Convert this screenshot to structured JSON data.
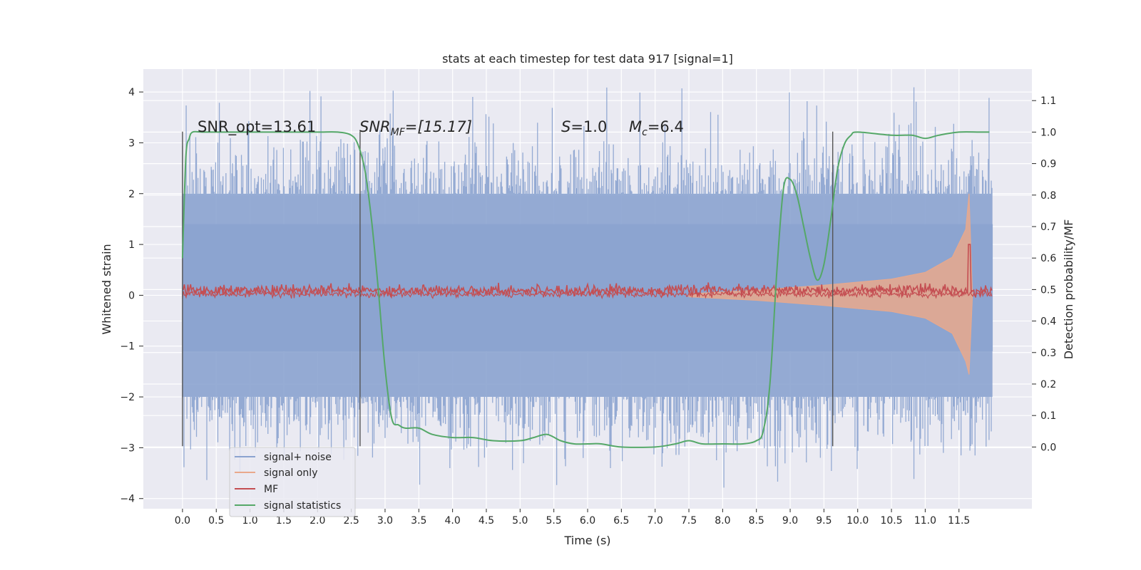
{
  "chart_data": {
    "type": "line",
    "title": "stats at each timestep for test data 917 [signal=1]",
    "xlabel": "Time (s)",
    "ylabel_left": "Whitened strain",
    "ylabel_right": "Detection probability/MF",
    "xlim": [
      -0.58,
      12.58
    ],
    "ylim_left": [
      -4.2,
      4.45
    ],
    "ylim_right": [
      -0.196,
      1.2
    ],
    "xticks": [
      0.0,
      0.5,
      1.0,
      1.5,
      2.0,
      2.5,
      3.0,
      3.5,
      4.0,
      4.5,
      5.0,
      5.5,
      6.0,
      6.5,
      7.0,
      7.5,
      8.0,
      8.5,
      9.0,
      9.5,
      10.0,
      10.5,
      11.0,
      11.5
    ],
    "xtick_labels": [
      "0.0",
      "0.5",
      "1.0",
      "1.5",
      "2.0",
      "2.5",
      "3.0",
      "3.5",
      "4.0",
      "4.5",
      "5.0",
      "5.5",
      "6.0",
      "6.5",
      "7.0",
      "7.5",
      "8.0",
      "8.5",
      "9.0",
      "9.5",
      "10.0",
      "10.5",
      "11.0",
      "11.5"
    ],
    "yticks_left": [
      4,
      3,
      2,
      1,
      0,
      -1,
      -2,
      -3,
      -4
    ],
    "ytick_labels_left": [
      "4",
      "3",
      "2",
      "1",
      "0",
      "−1",
      "−2",
      "−3",
      "−4"
    ],
    "yticks_right": [
      1.1,
      1.0,
      0.9,
      0.8,
      0.7,
      0.6,
      0.5,
      0.4,
      0.3,
      0.2,
      0.1,
      0.0
    ],
    "ytick_labels_right": [
      "1.1",
      "1.0",
      "0.9",
      "0.8",
      "0.7",
      "0.6",
      "0.5",
      "0.4",
      "0.3",
      "0.2",
      "0.1",
      "0.0"
    ],
    "grid": true,
    "legend_position": "lower-left",
    "legend": [
      {
        "name": "signal+ noise",
        "color": "#8ba3cf"
      },
      {
        "name": "signal only",
        "color": "#e9a98c"
      },
      {
        "name": "MF",
        "color": "#c44e52"
      },
      {
        "name": "signal statistics",
        "color": "#55a868"
      }
    ],
    "annotations": {
      "snr_opt": "SNR_opt=13.61",
      "snr_mf_main": "SNR",
      "snr_mf_sub": "MF",
      "snr_mf_rest": "=[15.17]",
      "s_main": "S",
      "s_rest": "=1.0",
      "mc_main": "M",
      "mc_sub": "c",
      "mc_rest": "=6.4"
    },
    "vertical_markers_x": [
      0.0,
      2.63,
      9.63
    ],
    "noise_band": {
      "t_start": 0.0,
      "t_end": 12.0,
      "typical_min": -2.0,
      "typical_max": 2.0,
      "peak_max": 4.1,
      "peak_min": -3.8
    },
    "signal_only_envelope": {
      "t": [
        7.5,
        8.5,
        9.5,
        10.5,
        11.0,
        11.4,
        11.6,
        11.65,
        11.7
      ],
      "amplitude": [
        0.03,
        0.1,
        0.2,
        0.32,
        0.45,
        0.75,
        1.3,
        2.0,
        0.0
      ]
    },
    "mf_line": {
      "t_start": 0.0,
      "t_end": 12.0,
      "baseline": 0.1,
      "spike_t": 11.65,
      "spike_value": 1.0
    },
    "signal_statistics": {
      "x": [
        0.0,
        0.05,
        0.1,
        0.15,
        0.3,
        0.6,
        1.0,
        1.5,
        2.0,
        2.3,
        2.5,
        2.6,
        2.7,
        2.8,
        2.9,
        3.0,
        3.1,
        3.2,
        3.3,
        3.5,
        3.7,
        4.0,
        4.3,
        4.6,
        5.0,
        5.2,
        5.4,
        5.6,
        5.8,
        6.0,
        6.2,
        6.5,
        7.0,
        7.3,
        7.5,
        7.7,
        8.0,
        8.3,
        8.5,
        8.6,
        8.7,
        8.8,
        8.9,
        9.0,
        9.1,
        9.2,
        9.3,
        9.4,
        9.5,
        9.6,
        9.7,
        9.8,
        9.9,
        10.0,
        10.5,
        10.8,
        11.0,
        11.2,
        11.5,
        11.8,
        11.95
      ],
      "y": [
        0.6,
        0.92,
        0.98,
        1.0,
        1.0,
        1.0,
        1.0,
        1.0,
        1.0,
        1.0,
        0.99,
        0.96,
        0.88,
        0.72,
        0.5,
        0.25,
        0.09,
        0.07,
        0.06,
        0.06,
        0.04,
        0.03,
        0.03,
        0.02,
        0.02,
        0.03,
        0.04,
        0.02,
        0.01,
        0.01,
        0.01,
        0.0,
        0.0,
        0.01,
        0.02,
        0.01,
        0.01,
        0.01,
        0.02,
        0.05,
        0.2,
        0.55,
        0.82,
        0.85,
        0.8,
        0.7,
        0.6,
        0.53,
        0.58,
        0.72,
        0.88,
        0.96,
        0.99,
        1.0,
        0.99,
        0.99,
        0.98,
        0.99,
        1.0,
        1.0,
        1.0
      ]
    }
  }
}
